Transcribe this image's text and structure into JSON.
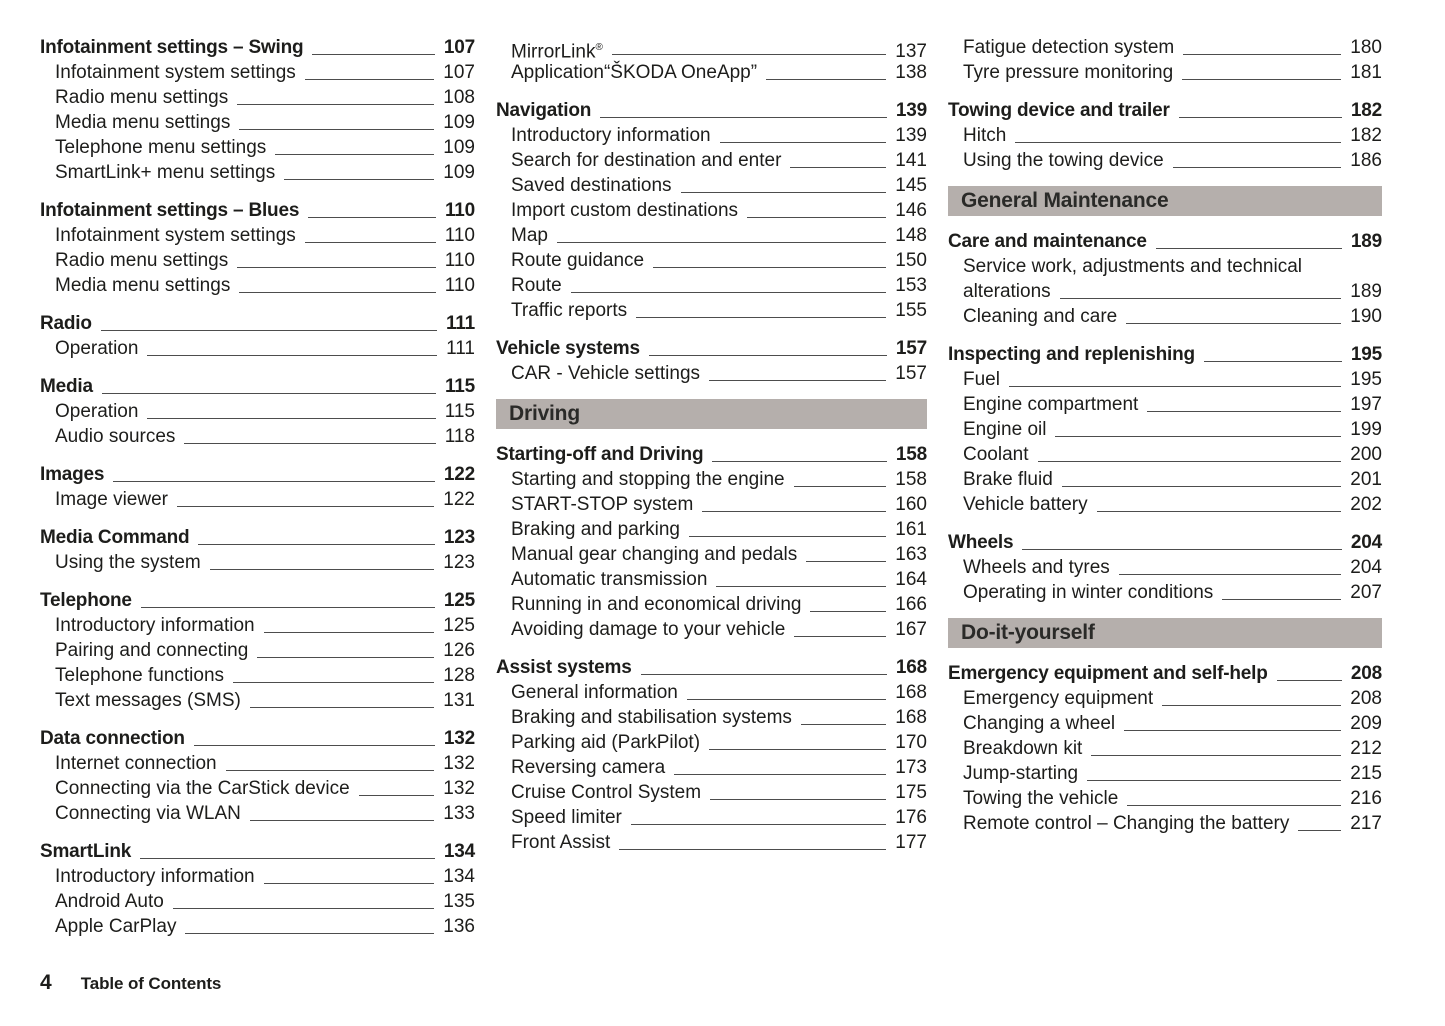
{
  "page": {
    "number": "4",
    "footer_label": "Table of Contents"
  },
  "colors": {
    "section_bar_bg": "#b5afac",
    "text": "#1d1d1b",
    "leader_line": "#4d4d4d"
  },
  "columns": [
    {
      "blocks": [
        {
          "type": "group",
          "title": "Infotainment settings – Swing",
          "page": "107",
          "items": [
            {
              "label": "Infotainment system settings",
              "page": "107"
            },
            {
              "label": "Radio menu settings",
              "page": "108"
            },
            {
              "label": "Media menu settings",
              "page": "109"
            },
            {
              "label": "Telephone menu settings",
              "page": "109"
            },
            {
              "label": "SmartLink+ menu settings",
              "page": "109"
            }
          ]
        },
        {
          "type": "group",
          "title": "Infotainment settings – Blues",
          "page": "110",
          "items": [
            {
              "label": "Infotainment system settings",
              "page": "110"
            },
            {
              "label": "Radio menu settings",
              "page": "110"
            },
            {
              "label": "Media menu settings",
              "page": "110"
            }
          ]
        },
        {
          "type": "group",
          "title": "Radio",
          "page": "111",
          "items": [
            {
              "label": "Operation",
              "page": "111"
            }
          ]
        },
        {
          "type": "group",
          "title": "Media",
          "page": "115",
          "items": [
            {
              "label": "Operation",
              "page": "115"
            },
            {
              "label": "Audio sources",
              "page": "118"
            }
          ]
        },
        {
          "type": "group",
          "title": "Images",
          "page": "122",
          "items": [
            {
              "label": "Image viewer",
              "page": "122"
            }
          ]
        },
        {
          "type": "group",
          "title": "Media Command",
          "page": "123",
          "items": [
            {
              "label": "Using the system",
              "page": "123"
            }
          ]
        },
        {
          "type": "group",
          "title": "Telephone",
          "page": "125",
          "items": [
            {
              "label": "Introductory information",
              "page": "125"
            },
            {
              "label": "Pairing and connecting",
              "page": "126"
            },
            {
              "label": "Telephone functions",
              "page": "128"
            },
            {
              "label": "Text messages (SMS)",
              "page": "131"
            }
          ]
        },
        {
          "type": "group",
          "title": "Data connection",
          "page": "132",
          "items": [
            {
              "label": "Internet connection",
              "page": "132"
            },
            {
              "label": "Connecting via the CarStick device",
              "page": "132"
            },
            {
              "label": "Connecting via WLAN",
              "page": "133"
            }
          ]
        },
        {
          "type": "group",
          "title": "SmartLink",
          "page": "134",
          "items": [
            {
              "label": "Introductory information",
              "page": "134"
            },
            {
              "label": "Android Auto",
              "page": "135"
            },
            {
              "label": "Apple CarPlay",
              "page": "136"
            }
          ]
        }
      ]
    },
    {
      "blocks": [
        {
          "type": "items",
          "items": [
            {
              "label": "MirrorLink",
              "sup": "®",
              "page": "137"
            },
            {
              "label": "Application“ŠKODA OneApp”",
              "page": "138"
            }
          ]
        },
        {
          "type": "group",
          "title": "Navigation",
          "page": "139",
          "items": [
            {
              "label": "Introductory information",
              "page": "139"
            },
            {
              "label": "Search for destination and enter",
              "page": "141"
            },
            {
              "label": "Saved destinations",
              "page": "145"
            },
            {
              "label": "Import custom destinations",
              "page": "146"
            },
            {
              "label": "Map",
              "page": "148"
            },
            {
              "label": "Route guidance",
              "page": "150"
            },
            {
              "label": "Route",
              "page": "153"
            },
            {
              "label": "Traffic reports",
              "page": "155"
            }
          ]
        },
        {
          "type": "group",
          "title": "Vehicle systems",
          "page": "157",
          "items": [
            {
              "label": "CAR - Vehicle settings",
              "page": "157"
            }
          ]
        },
        {
          "type": "bar",
          "label": "Driving"
        },
        {
          "type": "group",
          "title": "Starting-off and Driving",
          "page": "158",
          "items": [
            {
              "label": "Starting and stopping the engine",
              "page": "158"
            },
            {
              "label": "START-STOP system",
              "page": "160"
            },
            {
              "label": "Braking and parking",
              "page": "161"
            },
            {
              "label": "Manual gear changing and pedals",
              "page": "163"
            },
            {
              "label": "Automatic transmission",
              "page": "164"
            },
            {
              "label": "Running in and economical driving",
              "page": "166"
            },
            {
              "label": "Avoiding damage to your vehicle",
              "page": "167"
            }
          ]
        },
        {
          "type": "group",
          "title": "Assist systems",
          "page": "168",
          "items": [
            {
              "label": "General information",
              "page": "168"
            },
            {
              "label": "Braking and stabilisation systems",
              "page": "168"
            },
            {
              "label": "Parking aid (ParkPilot)",
              "page": "170"
            },
            {
              "label": "Reversing camera",
              "page": "173"
            },
            {
              "label": "Cruise Control System",
              "page": "175"
            },
            {
              "label": "Speed limiter",
              "page": "176"
            },
            {
              "label": "Front Assist",
              "page": "177"
            }
          ]
        }
      ]
    },
    {
      "blocks": [
        {
          "type": "items",
          "items": [
            {
              "label": "Fatigue detection system",
              "page": "180"
            },
            {
              "label": "Tyre pressure monitoring",
              "page": "181"
            }
          ]
        },
        {
          "type": "group",
          "title": "Towing device and trailer",
          "page": "182",
          "items": [
            {
              "label": "Hitch",
              "page": "182"
            },
            {
              "label": "Using the towing device",
              "page": "186"
            }
          ]
        },
        {
          "type": "bar",
          "label": "General Maintenance"
        },
        {
          "type": "group",
          "title": "Care and maintenance",
          "page": "189",
          "items": [
            {
              "label": "Service work, adjustments and technical",
              "page": ""
            },
            {
              "label": "alterations",
              "page": "189",
              "noindent_continuation": true
            },
            {
              "label": "Cleaning and care",
              "page": "190"
            }
          ]
        },
        {
          "type": "group",
          "title": "Inspecting and replenishing",
          "page": "195",
          "items": [
            {
              "label": "Fuel",
              "page": "195"
            },
            {
              "label": "Engine compartment",
              "page": "197"
            },
            {
              "label": "Engine oil",
              "page": "199"
            },
            {
              "label": "Coolant",
              "page": "200"
            },
            {
              "label": "Brake fluid",
              "page": "201"
            },
            {
              "label": "Vehicle battery",
              "page": "202"
            }
          ]
        },
        {
          "type": "group",
          "title": "Wheels",
          "page": "204",
          "items": [
            {
              "label": "Wheels and tyres",
              "page": "204"
            },
            {
              "label": "Operating in winter conditions",
              "page": "207"
            }
          ]
        },
        {
          "type": "bar",
          "label": "Do-it-yourself"
        },
        {
          "type": "group",
          "title": "Emergency equipment and self-help",
          "page": "208",
          "items": [
            {
              "label": "Emergency equipment",
              "page": "208"
            },
            {
              "label": "Changing a wheel",
              "page": "209"
            },
            {
              "label": "Breakdown kit",
              "page": "212"
            },
            {
              "label": "Jump-starting",
              "page": "215"
            },
            {
              "label": "Towing the vehicle",
              "page": "216"
            },
            {
              "label": "Remote control – Changing the battery",
              "page": "217"
            }
          ]
        }
      ]
    }
  ]
}
